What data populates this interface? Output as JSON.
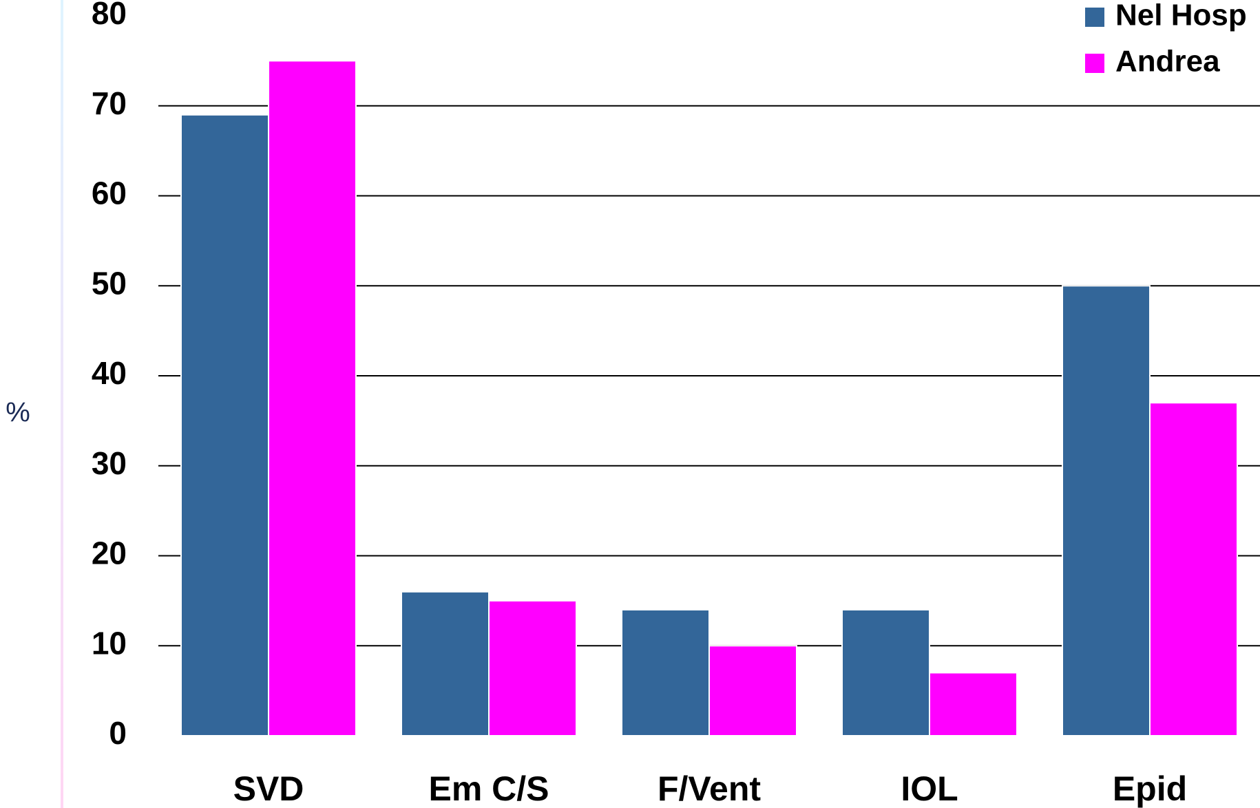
{
  "chart_data": {
    "type": "bar",
    "y_label": "%",
    "categories": [
      "SVD",
      "Em C/S",
      "F/Vent",
      "IOL",
      "Epid"
    ],
    "series": [
      {
        "name": "Nel Hosp",
        "color": "#336699",
        "values": [
          69,
          16,
          14,
          14,
          50
        ]
      },
      {
        "name": "Andrea",
        "color": "#ff00ff",
        "values": [
          75,
          15,
          10,
          7,
          37
        ]
      }
    ],
    "ylim": [
      0,
      80
    ],
    "yticks": [
      0,
      10,
      20,
      30,
      40,
      50,
      60,
      70,
      80
    ],
    "grid": true,
    "legend": "top-right"
  }
}
